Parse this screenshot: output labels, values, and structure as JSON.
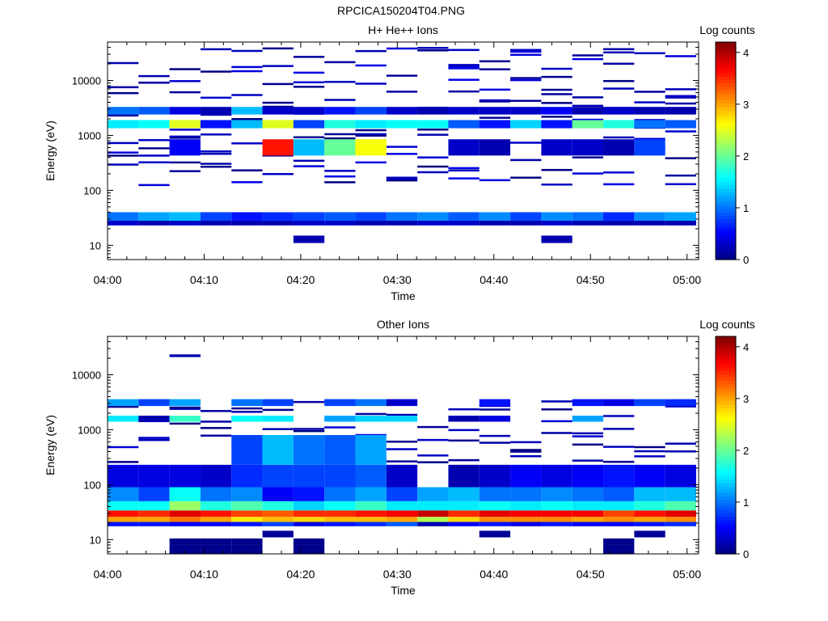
{
  "figure": {
    "title": "RPCICA150204T04.PNG",
    "colormap": "jet"
  },
  "chart_data": [
    {
      "type": "heatmap",
      "title": "H+ He++ Ions",
      "xlabel": "Time",
      "ylabel": "Energy (eV)",
      "y_scale": "log",
      "ylim": [
        5.5,
        50000
      ],
      "x_ticks": [
        "04:00",
        "04:10",
        "04:20",
        "04:30",
        "04:40",
        "04:50",
        "05:00"
      ],
      "y_ticks": [
        "10",
        "100",
        "1000",
        "10000"
      ],
      "colorbar": {
        "label": "Log counts",
        "range": [
          0,
          4.2
        ],
        "ticks": [
          "0",
          "1",
          "2",
          "3",
          "4"
        ]
      },
      "background": "#ffffff",
      "dense_bands": [
        {
          "e_lo": 23,
          "e_hi": 28,
          "levels": [
            0.3,
            0.2,
            0.3,
            0.2,
            0.2,
            0.2,
            0.3,
            0.3,
            0.2,
            0.2,
            0.3,
            0.3,
            0.2,
            0.2,
            0.3,
            0.2,
            0.2,
            0.2,
            0.2
          ]
        },
        {
          "e_lo": 28,
          "e_hi": 40,
          "levels": [
            1.0,
            1.2,
            1.3,
            0.8,
            0.6,
            0.7,
            0.8,
            0.9,
            0.8,
            1.0,
            1.1,
            0.9,
            1.1,
            0.8,
            1.1,
            1.0,
            0.7,
            1.1,
            1.2
          ]
        },
        {
          "e_lo": 1350,
          "e_hi": 1900,
          "levels": [
            1.5,
            1.6,
            2.5,
            0.6,
            1.3,
            2.5,
            0.8,
            1.7,
            1.5,
            1.6,
            1.6,
            0.9,
            0.6,
            1.4,
            0.6,
            2.0,
            1.7,
            1.0,
            0.9
          ]
        },
        {
          "e_lo": 2400,
          "e_hi": 3300,
          "levels": [
            1.0,
            0.9,
            0.4,
            0.2,
            1.3,
            0.3,
            0.3,
            0.6,
            0.8,
            0.3,
            0.2,
            0.3,
            0.3,
            0.3,
            0.5,
            0.2,
            0.3,
            0.2,
            0.2
          ]
        },
        {
          "e_lo": 430,
          "e_hi": 850,
          "levels": [
            0.0,
            0.0,
            0.5,
            0.0,
            0.0,
            3.6,
            1.3,
            2.0,
            2.6,
            0.0,
            0.0,
            0.3,
            0.2,
            0.0,
            0.3,
            0.3,
            0.2,
            0.8,
            0.0
          ]
        },
        {
          "e_lo": 11,
          "e_hi": 15,
          "levels": [
            0,
            0,
            0,
            0,
            0,
            0,
            0.2,
            0,
            0,
            0,
            0,
            0,
            0,
            0,
            0.2,
            0,
            0,
            0,
            0
          ]
        }
      ],
      "sparse_lines": {
        "e_lo": 120,
        "e_hi": 40000,
        "per_bin": 9,
        "level_max": 0.45,
        "seed": 17
      }
    },
    {
      "type": "heatmap",
      "title": "Other Ions",
      "xlabel": "Time",
      "ylabel": "Energy (eV)",
      "y_scale": "log",
      "ylim": [
        5.5,
        50000
      ],
      "x_ticks": [
        "04:00",
        "04:10",
        "04:20",
        "04:30",
        "04:40",
        "04:50",
        "05:00"
      ],
      "y_ticks": [
        "10",
        "100",
        "1000",
        "10000"
      ],
      "colorbar": {
        "label": "Log counts",
        "range": [
          0,
          4.2
        ],
        "ticks": [
          "0",
          "1",
          "2",
          "3",
          "4"
        ]
      },
      "background": "#ffffff",
      "dense_bands": [
        {
          "e_lo": 17.5,
          "e_hi": 21,
          "levels": [
            0.6,
            0.6,
            0.5,
            0.5,
            0.6,
            0.8,
            0.4,
            0.6,
            0.7,
            0.9,
            0.2,
            0.5,
            0.6,
            0.4,
            0.6,
            0.5,
            0.5,
            0.6,
            0.7
          ]
        },
        {
          "e_lo": 21,
          "e_hi": 26,
          "levels": [
            3.0,
            3.0,
            3.2,
            3.0,
            2.7,
            2.9,
            2.8,
            2.9,
            2.9,
            3.0,
            2.3,
            2.8,
            3.1,
            3.1,
            3.1,
            3.0,
            3.1,
            3.0,
            3.1
          ]
        },
        {
          "e_lo": 26,
          "e_hi": 34,
          "levels": [
            3.6,
            3.5,
            3.8,
            3.6,
            3.4,
            3.3,
            3.5,
            3.5,
            3.6,
            3.7,
            3.9,
            3.5,
            3.8,
            3.7,
            3.7,
            3.7,
            3.4,
            3.6,
            3.8
          ]
        },
        {
          "e_lo": 34,
          "e_hi": 50,
          "levels": [
            1.6,
            1.6,
            2.2,
            1.7,
            1.9,
            1.7,
            1.4,
            1.6,
            1.8,
            1.5,
            1.5,
            1.5,
            1.6,
            1.5,
            1.6,
            1.5,
            1.5,
            1.7,
            1.9
          ]
        },
        {
          "e_lo": 50,
          "e_hi": 90,
          "levels": [
            1.1,
            0.8,
            1.6,
            1.0,
            1.1,
            0.5,
            0.6,
            1.0,
            1.2,
            0.8,
            1.2,
            1.3,
            1.0,
            1.0,
            1.1,
            1.0,
            0.9,
            1.3,
            1.3
          ]
        },
        {
          "e_lo": 90,
          "e_hi": 230,
          "levels": [
            0.4,
            0.4,
            0.4,
            0.3,
            0.7,
            0.8,
            0.8,
            0.8,
            0.9,
            0.3,
            0.0,
            0.2,
            0.3,
            0.5,
            0.4,
            0.5,
            0.6,
            0.5,
            0.4
          ]
        },
        {
          "e_lo": 230,
          "e_hi": 800,
          "levels": [
            0.0,
            0.0,
            0.0,
            0.0,
            0.8,
            1.3,
            1.0,
            0.9,
            1.2,
            0.0,
            0.0,
            0.0,
            0.0,
            0.0,
            0.0,
            0.0,
            0.0,
            0.0,
            0.0
          ]
        },
        {
          "e_lo": 1400,
          "e_hi": 1800,
          "levels": [
            1.5,
            0.2,
            1.8,
            0.0,
            1.6,
            1.5,
            0.0,
            1.2,
            1.4,
            1.4,
            0.0,
            0.2,
            0.4,
            0.0,
            0.0,
            1.2,
            0.0,
            0.0,
            0.0
          ]
        },
        {
          "e_lo": 2700,
          "e_hi": 3600,
          "levels": [
            1.2,
            0.8,
            1.2,
            0.0,
            1.0,
            0.8,
            0.0,
            0.8,
            1.0,
            0.3,
            0.0,
            0.0,
            0.6,
            0.0,
            0.0,
            0.6,
            0.4,
            0.8,
            0.7
          ]
        },
        {
          "e_lo": 5.5,
          "e_hi": 8,
          "levels": [
            0,
            0,
            0.05,
            0.05,
            0.05,
            0,
            0.05,
            0,
            0,
            0,
            0,
            0,
            0,
            0,
            0,
            0,
            0.05,
            0,
            0
          ]
        },
        {
          "e_lo": 8,
          "e_hi": 10.5,
          "levels": [
            0,
            0,
            0.05,
            0.05,
            0.05,
            0,
            0.05,
            0,
            0,
            0,
            0,
            0,
            0,
            0,
            0,
            0,
            0.05,
            0,
            0
          ]
        },
        {
          "e_lo": 11,
          "e_hi": 14.5,
          "levels": [
            0,
            0,
            0,
            0,
            0,
            0.1,
            0,
            0,
            0,
            0,
            0,
            0,
            0.1,
            0,
            0,
            0,
            0,
            0.1,
            0
          ]
        },
        {
          "e_lo": 21000,
          "e_hi": 23500,
          "levels": [
            0,
            0,
            0.2,
            0,
            0,
            0,
            0,
            0,
            0,
            0,
            0,
            0,
            0,
            0,
            0,
            0,
            0,
            0,
            0
          ]
        }
      ],
      "sparse_lines": {
        "e_lo": 250,
        "e_hi": 3500,
        "per_bin": 4,
        "level_max": 0.35,
        "seed": 41
      }
    }
  ]
}
